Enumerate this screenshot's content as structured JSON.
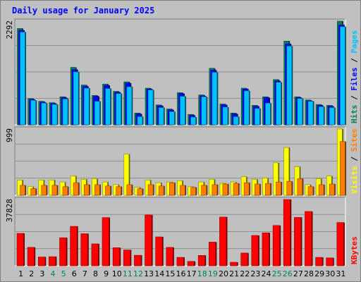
{
  "title": "Daily usage for January 2025",
  "colors": {
    "hits": "#00805c",
    "files": "#0000ff",
    "pages": "#00c0ff",
    "visits": "#ffff00",
    "sites": "#ff8000",
    "kbytes": "#ff0000",
    "weekday_label": "#000000",
    "weekend_label": "#00805c",
    "slash": "#000000"
  },
  "side_labels": {
    "top": [
      {
        "text": "Hits",
        "color_key": "hits"
      },
      {
        "text": " / ",
        "color_key": "slash"
      },
      {
        "text": "Files",
        "color_key": "files"
      },
      {
        "text": " / ",
        "color_key": "slash"
      },
      {
        "text": "Pages",
        "color_key": "pages"
      }
    ],
    "middle": [
      {
        "text": "Visits",
        "color_key": "visits"
      },
      {
        "text": " / ",
        "color_key": "slash"
      },
      {
        "text": "Sites",
        "color_key": "sites"
      }
    ],
    "bottom": [
      {
        "text": "KBytes",
        "color_key": "kbytes"
      }
    ]
  },
  "chart_data": [
    {
      "type": "bar",
      "panel": "hits_files_pages",
      "ymax_label": "2292",
      "ylim": [
        0,
        2292
      ],
      "grid": true,
      "categories": [
        "1",
        "2",
        "3",
        "4",
        "5",
        "6",
        "7",
        "8",
        "9",
        "10",
        "11",
        "12",
        "13",
        "14",
        "15",
        "16",
        "17",
        "18",
        "19",
        "20",
        "21",
        "22",
        "23",
        "24",
        "25",
        "26",
        "27",
        "28",
        "29",
        "30",
        "31"
      ],
      "weekend_days": [
        "4",
        "5",
        "11",
        "12",
        "18",
        "19",
        "25",
        "26"
      ],
      "series": [
        {
          "name": "Hits",
          "values": [
            2130,
            580,
            520,
            490,
            620,
            1270,
            880,
            650,
            900,
            740,
            950,
            260,
            810,
            440,
            350,
            710,
            230,
            660,
            1250,
            460,
            260,
            810,
            430,
            620,
            1000,
            1850,
            620,
            550,
            450,
            430,
            2292
          ]
        },
        {
          "name": "Files",
          "values": [
            2090,
            560,
            500,
            470,
            600,
            1220,
            850,
            630,
            870,
            720,
            920,
            240,
            790,
            420,
            330,
            690,
            210,
            640,
            1210,
            440,
            240,
            790,
            410,
            600,
            970,
            1790,
            600,
            530,
            430,
            410,
            2210
          ]
        },
        {
          "name": "Pages",
          "values": [
            2050,
            540,
            480,
            450,
            570,
            1170,
            810,
            520,
            800,
            690,
            840,
            180,
            770,
            380,
            290,
            630,
            170,
            620,
            1160,
            390,
            180,
            750,
            360,
            480,
            940,
            1740,
            580,
            520,
            400,
            380,
            2170
          ]
        }
      ]
    },
    {
      "type": "bar",
      "panel": "visits_sites",
      "ymax_label": "999",
      "ylim": [
        0,
        999
      ],
      "grid": true,
      "categories": [
        "1",
        "2",
        "3",
        "4",
        "5",
        "6",
        "7",
        "8",
        "9",
        "10",
        "11",
        "12",
        "13",
        "14",
        "15",
        "16",
        "17",
        "18",
        "19",
        "20",
        "21",
        "22",
        "23",
        "24",
        "25",
        "26",
        "27",
        "28",
        "29",
        "30",
        "31"
      ],
      "series": [
        {
          "name": "Visits",
          "values": [
            230,
            130,
            230,
            230,
            200,
            290,
            240,
            250,
            200,
            160,
            620,
            120,
            230,
            190,
            200,
            220,
            130,
            200,
            240,
            180,
            200,
            280,
            240,
            260,
            490,
            720,
            430,
            160,
            250,
            290,
            999
          ]
        },
        {
          "name": "Sites",
          "values": [
            150,
            100,
            150,
            150,
            130,
            190,
            160,
            160,
            140,
            130,
            160,
            100,
            160,
            140,
            190,
            150,
            120,
            150,
            160,
            170,
            180,
            190,
            170,
            180,
            200,
            210,
            250,
            130,
            160,
            170,
            810
          ]
        }
      ]
    },
    {
      "type": "bar",
      "panel": "kbytes",
      "ymax_label": "37828",
      "ylim": [
        0,
        37828
      ],
      "grid": true,
      "categories": [
        "1",
        "2",
        "3",
        "4",
        "5",
        "6",
        "7",
        "8",
        "9",
        "10",
        "11",
        "12",
        "13",
        "14",
        "15",
        "16",
        "17",
        "18",
        "19",
        "20",
        "21",
        "22",
        "23",
        "24",
        "25",
        "26",
        "27",
        "28",
        "29",
        "30",
        "31"
      ],
      "series": [
        {
          "name": "KBytes",
          "values": [
            18500,
            10500,
            5000,
            5200,
            16000,
            22500,
            18300,
            12500,
            27500,
            10300,
            9000,
            6000,
            29000,
            16500,
            10500,
            4800,
            2500,
            5900,
            13500,
            27800,
            2000,
            7300,
            17300,
            18800,
            23000,
            37828,
            27600,
            31000,
            4800,
            4500,
            24700
          ]
        }
      ]
    }
  ]
}
